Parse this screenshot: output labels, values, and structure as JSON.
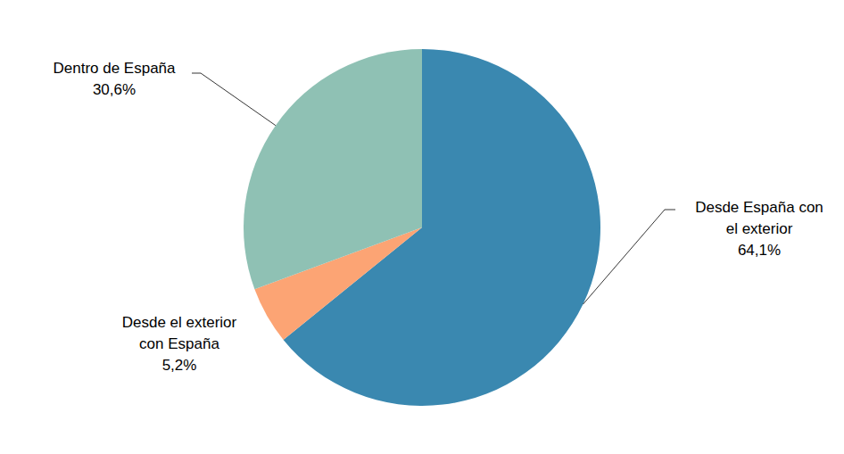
{
  "chart_data": {
    "type": "pie",
    "categories": [
      "Desde España con el exterior",
      "Desde el exterior con España",
      "Dentro de España"
    ],
    "values": [
      64.1,
      5.2,
      30.6
    ],
    "value_labels": [
      "64,1%",
      "5,2%",
      "30,6%"
    ],
    "colors": [
      "#3a88b0",
      "#fca474",
      "#8fc1b4"
    ],
    "data_labels": true
  }
}
